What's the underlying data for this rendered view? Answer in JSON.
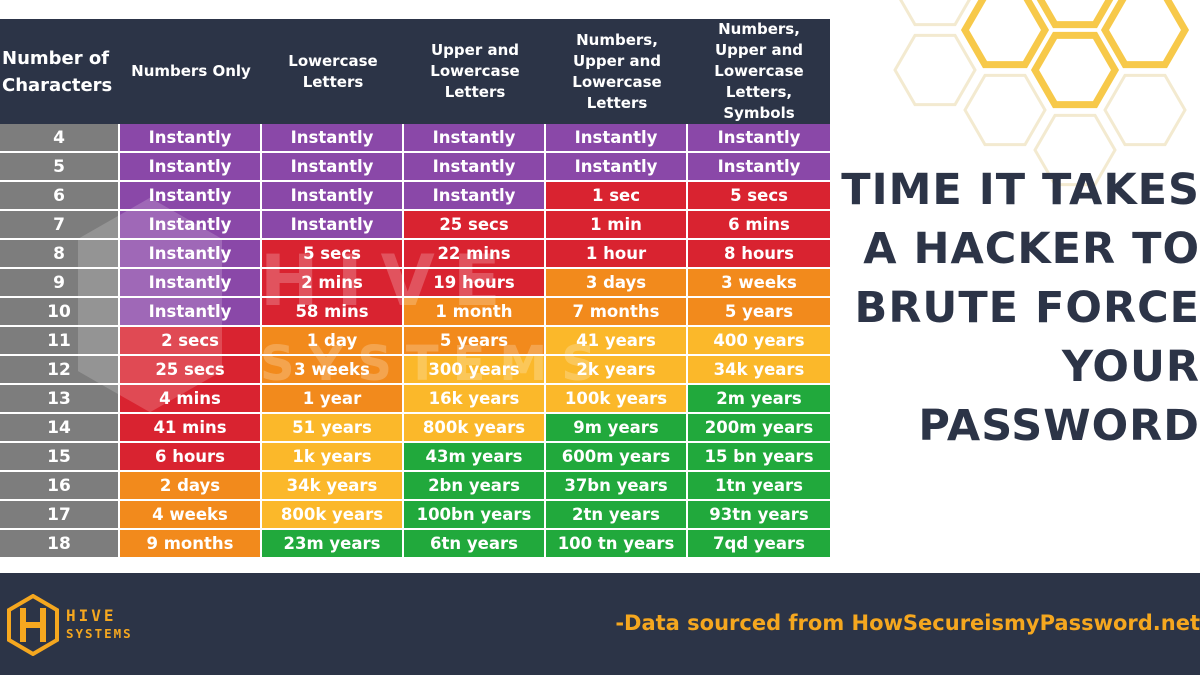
{
  "colors": {
    "purple": "#8a48a8",
    "red": "#d92330",
    "orange": "#f28a1c",
    "yellow": "#fbb82a",
    "green": "#21a93c",
    "gray": "#7d7d7d",
    "navy": "#2c3447",
    "gold": "#f5a71f"
  },
  "chart_data": {
    "type": "table",
    "title": "TIME IT TAKES A HACKER TO BRUTE FORCE YOUR PASSWORD",
    "columns": [
      "Number of Characters",
      "Numbers Only",
      "Lowercase Letters",
      "Upper and Lowercase Letters",
      "Numbers, Upper and Lowercase Letters",
      "Numbers, Upper and Lowercase Letters, Symbols"
    ],
    "rows": [
      {
        "length": "4",
        "cells": [
          {
            "text": "Instantly",
            "level": "purple"
          },
          {
            "text": "Instantly",
            "level": "purple"
          },
          {
            "text": "Instantly",
            "level": "purple"
          },
          {
            "text": "Instantly",
            "level": "purple"
          },
          {
            "text": "Instantly",
            "level": "purple"
          }
        ]
      },
      {
        "length": "5",
        "cells": [
          {
            "text": "Instantly",
            "level": "purple"
          },
          {
            "text": "Instantly",
            "level": "purple"
          },
          {
            "text": "Instantly",
            "level": "purple"
          },
          {
            "text": "Instantly",
            "level": "purple"
          },
          {
            "text": "Instantly",
            "level": "purple"
          }
        ]
      },
      {
        "length": "6",
        "cells": [
          {
            "text": "Instantly",
            "level": "purple"
          },
          {
            "text": "Instantly",
            "level": "purple"
          },
          {
            "text": "Instantly",
            "level": "purple"
          },
          {
            "text": "1 sec",
            "level": "red"
          },
          {
            "text": "5 secs",
            "level": "red"
          }
        ]
      },
      {
        "length": "7",
        "cells": [
          {
            "text": "Instantly",
            "level": "purple"
          },
          {
            "text": "Instantly",
            "level": "purple"
          },
          {
            "text": "25 secs",
            "level": "red"
          },
          {
            "text": "1 min",
            "level": "red"
          },
          {
            "text": "6 mins",
            "level": "red"
          }
        ]
      },
      {
        "length": "8",
        "cells": [
          {
            "text": "Instantly",
            "level": "purple"
          },
          {
            "text": "5 secs",
            "level": "red"
          },
          {
            "text": "22 mins",
            "level": "red"
          },
          {
            "text": "1 hour",
            "level": "red"
          },
          {
            "text": "8 hours",
            "level": "red"
          }
        ]
      },
      {
        "length": "9",
        "cells": [
          {
            "text": "Instantly",
            "level": "purple"
          },
          {
            "text": "2 mins",
            "level": "red"
          },
          {
            "text": "19 hours",
            "level": "red"
          },
          {
            "text": "3 days",
            "level": "orange"
          },
          {
            "text": "3 weeks",
            "level": "orange"
          }
        ]
      },
      {
        "length": "10",
        "cells": [
          {
            "text": "Instantly",
            "level": "purple"
          },
          {
            "text": "58 mins",
            "level": "red"
          },
          {
            "text": "1 month",
            "level": "orange"
          },
          {
            "text": "7 months",
            "level": "orange"
          },
          {
            "text": "5 years",
            "level": "orange"
          }
        ]
      },
      {
        "length": "11",
        "cells": [
          {
            "text": "2 secs",
            "level": "red"
          },
          {
            "text": "1 day",
            "level": "orange"
          },
          {
            "text": "5 years",
            "level": "orange"
          },
          {
            "text": "41 years",
            "level": "yellow"
          },
          {
            "text": "400 years",
            "level": "yellow"
          }
        ]
      },
      {
        "length": "12",
        "cells": [
          {
            "text": "25 secs",
            "level": "red"
          },
          {
            "text": "3 weeks",
            "level": "orange"
          },
          {
            "text": "300 years",
            "level": "yellow"
          },
          {
            "text": "2k years",
            "level": "yellow"
          },
          {
            "text": "34k years",
            "level": "yellow"
          }
        ]
      },
      {
        "length": "13",
        "cells": [
          {
            "text": "4 mins",
            "level": "red"
          },
          {
            "text": "1 year",
            "level": "orange"
          },
          {
            "text": "16k years",
            "level": "yellow"
          },
          {
            "text": "100k years",
            "level": "yellow"
          },
          {
            "text": "2m years",
            "level": "green"
          }
        ]
      },
      {
        "length": "14",
        "cells": [
          {
            "text": "41 mins",
            "level": "red"
          },
          {
            "text": "51 years",
            "level": "yellow"
          },
          {
            "text": "800k years",
            "level": "yellow"
          },
          {
            "text": "9m years",
            "level": "green"
          },
          {
            "text": "200m years",
            "level": "green"
          }
        ]
      },
      {
        "length": "15",
        "cells": [
          {
            "text": "6 hours",
            "level": "red"
          },
          {
            "text": "1k years",
            "level": "yellow"
          },
          {
            "text": "43m years",
            "level": "green"
          },
          {
            "text": "600m years",
            "level": "green"
          },
          {
            "text": "15 bn years",
            "level": "green"
          }
        ]
      },
      {
        "length": "16",
        "cells": [
          {
            "text": "2 days",
            "level": "orange"
          },
          {
            "text": "34k years",
            "level": "yellow"
          },
          {
            "text": "2bn years",
            "level": "green"
          },
          {
            "text": "37bn years",
            "level": "green"
          },
          {
            "text": "1tn years",
            "level": "green"
          }
        ]
      },
      {
        "length": "17",
        "cells": [
          {
            "text": "4 weeks",
            "level": "orange"
          },
          {
            "text": "800k years",
            "level": "yellow"
          },
          {
            "text": "100bn years",
            "level": "green"
          },
          {
            "text": "2tn years",
            "level": "green"
          },
          {
            "text": "93tn years",
            "level": "green"
          }
        ]
      },
      {
        "length": "18",
        "cells": [
          {
            "text": "9 months",
            "level": "orange"
          },
          {
            "text": "23m years",
            "level": "green"
          },
          {
            "text": "6tn years",
            "level": "green"
          },
          {
            "text": "100 tn years",
            "level": "green"
          },
          {
            "text": "7qd years",
            "level": "green"
          }
        ]
      }
    ]
  },
  "title_lines": [
    "TIME IT TAKES",
    "A HACKER TO",
    "BRUTE FORCE",
    "YOUR",
    "PASSWORD"
  ],
  "watermark": {
    "brand": "HIVE",
    "sub": "SYSTEMS"
  },
  "footer": {
    "logo_brand": "HIVE",
    "logo_sub": "SYSTEMS",
    "source_text": "-Data sourced from HowSecureismyPassword.net"
  }
}
